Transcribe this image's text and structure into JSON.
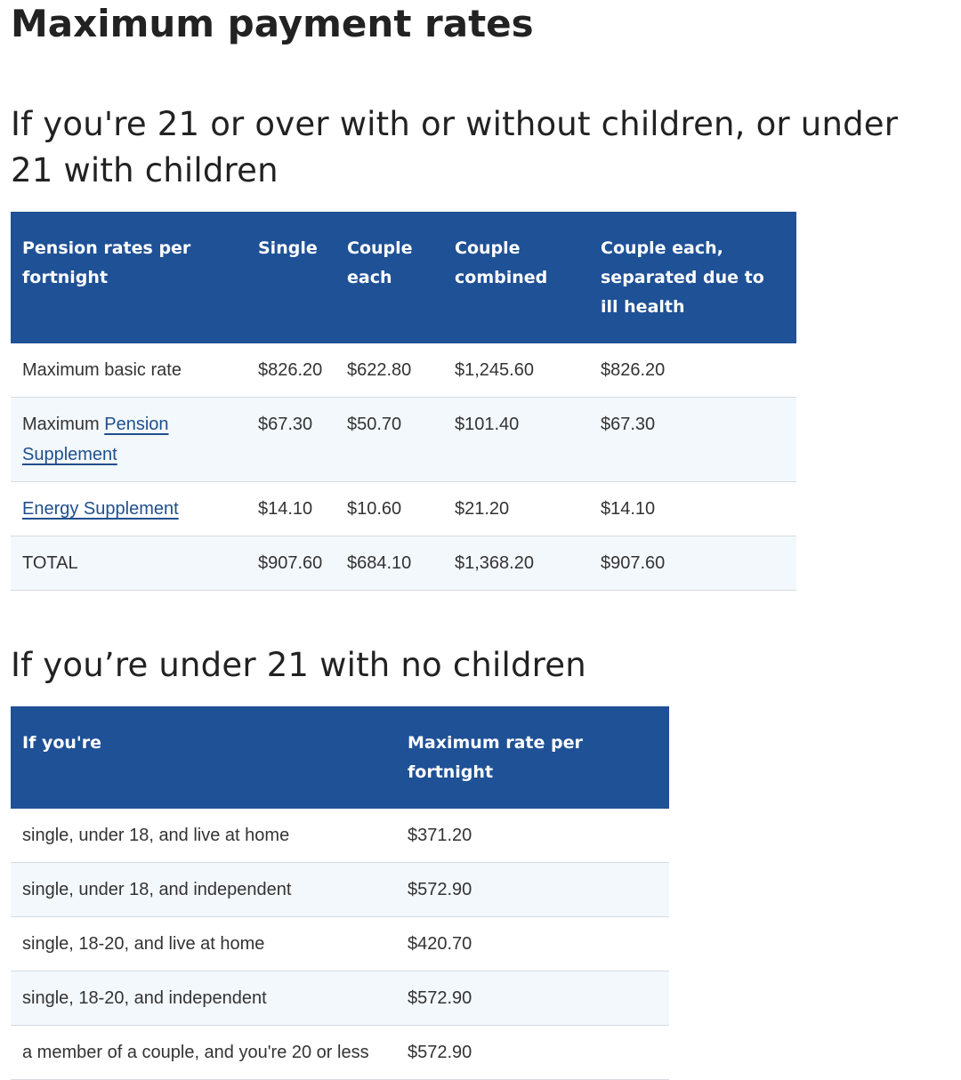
{
  "page_title": "Maximum payment rates",
  "section1": {
    "heading": "If you're 21 or over with or without children, or under 21 with children",
    "headers": [
      "Pension rates per fortnight",
      "Single",
      "Couple each",
      "Couple combined",
      "Couple each, separated due to ill health"
    ],
    "rows": [
      {
        "label_prefix": "",
        "label_link": "",
        "label": "Maximum basic rate",
        "values": [
          "$826.20",
          "$622.80",
          "$1,245.60",
          "$826.20"
        ]
      },
      {
        "label_prefix": "Maximum ",
        "label_link": "Pension Supplement",
        "label": "",
        "values": [
          "$67.30",
          "$50.70",
          "$101.40",
          "$67.30"
        ]
      },
      {
        "label_prefix": "",
        "label_link": "Energy Supplement",
        "label": "",
        "values": [
          "$14.10",
          "$10.60",
          "$21.20",
          "$14.10"
        ]
      },
      {
        "label_prefix": "",
        "label_link": "",
        "label": "TOTAL",
        "values": [
          "$907.60",
          "$684.10",
          "$1,368.20",
          "$907.60"
        ]
      }
    ]
  },
  "section2": {
    "heading": "If you’re under 21 with no children",
    "headers": [
      "If you're",
      "Maximum rate per fortnight"
    ],
    "rows": [
      {
        "label": "single, under 18, and live at home",
        "value": "$371.20"
      },
      {
        "label": "single, under 18, and independent",
        "value": "$572.90"
      },
      {
        "label": "single, 18-20, and live at home",
        "value": "$420.70"
      },
      {
        "label": "single, 18-20, and independent",
        "value": "$572.90"
      },
      {
        "label": "a member of a couple, and you're 20 or less",
        "value": "$572.90"
      }
    ]
  },
  "colors": {
    "header_bg": "#1f5196",
    "stripe_bg": "#f3f8fc",
    "link": "#1f4f8c"
  }
}
